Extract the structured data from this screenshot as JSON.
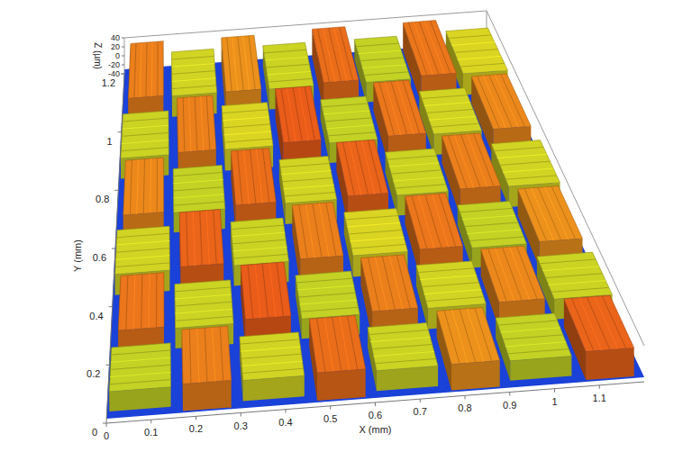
{
  "chart_data": {
    "type": "surface",
    "x_label": "X (mm)",
    "y_label": "Y (mm)",
    "z_label": "Z (µm)",
    "xlim": [
      0,
      1.2
    ],
    "xticks": [
      0,
      0.1,
      0.2,
      0.3,
      0.4,
      0.5,
      0.6,
      0.7,
      0.8,
      0.9,
      1,
      1.1
    ],
    "ylim": [
      0,
      1.2
    ],
    "yticks": [
      0,
      0.2,
      0.4,
      0.6,
      0.8,
      1,
      1.2
    ],
    "zlim": [
      -40,
      40
    ],
    "zticks": [
      -40,
      -20,
      0,
      20,
      40
    ],
    "gap_value": -30,
    "cells": [
      [
        14,
        30,
        16,
        32,
        15,
        28,
        14,
        33
      ],
      [
        31,
        15,
        34,
        14,
        30,
        16,
        29,
        15
      ],
      [
        16,
        33,
        15,
        30,
        17,
        31,
        14,
        28
      ],
      [
        29,
        14,
        32,
        16,
        33,
        15,
        30,
        16
      ],
      [
        15,
        30,
        17,
        34,
        14,
        31,
        16,
        29
      ],
      [
        30,
        16,
        28,
        15,
        32,
        14,
        31,
        17
      ]
    ]
  }
}
